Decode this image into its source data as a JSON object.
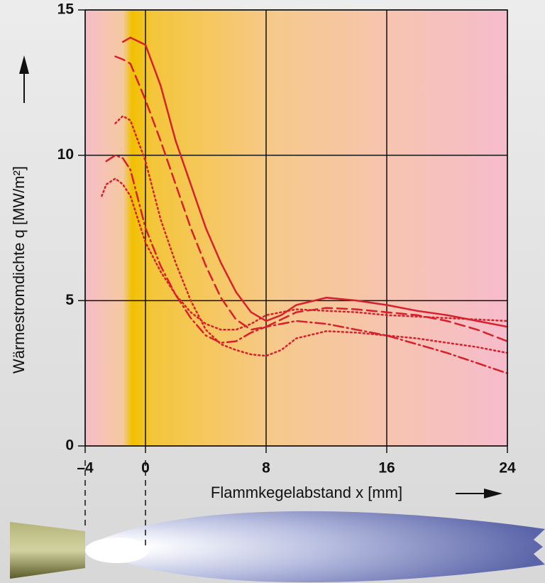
{
  "chart_data": {
    "type": "line",
    "ylabel": "Wärmestromdichte q [MW/m²]",
    "xlabel": "Flammkegelabstand x [mm]",
    "x": [
      -2.9,
      -2.6,
      -2,
      -1.5,
      -1,
      0,
      1,
      2,
      3,
      4,
      5,
      6,
      7,
      8,
      9,
      10,
      12,
      14,
      16,
      18,
      20,
      22,
      24
    ],
    "series": [
      {
        "color": "#d8202c",
        "dash": "solid",
        "values": [
          null,
          null,
          null,
          13.9,
          14.05,
          13.8,
          12.4,
          10.5,
          9.0,
          7.5,
          6.3,
          5.3,
          4.6,
          4.3,
          4.5,
          4.85,
          5.1,
          5.0,
          4.85,
          4.65,
          4.5,
          4.3,
          4.1
        ]
      },
      {
        "color": "#d8202c",
        "dash": "dashed",
        "values": [
          null,
          null,
          13.4,
          13.3,
          13.15,
          11.9,
          10.5,
          9.0,
          7.5,
          6.2,
          5.1,
          4.35,
          4.0,
          4.1,
          4.35,
          4.6,
          4.75,
          4.7,
          4.6,
          4.5,
          4.3,
          4.0,
          3.6
        ]
      },
      {
        "color": "#d8202c",
        "dash": "dotted",
        "values": [
          null,
          null,
          11.1,
          11.35,
          11.2,
          9.8,
          7.8,
          6.3,
          5.0,
          4.0,
          3.5,
          3.3,
          3.15,
          3.1,
          3.3,
          3.7,
          3.95,
          3.9,
          3.8,
          3.7,
          3.55,
          3.4,
          3.2
        ]
      },
      {
        "color": "#d8202c",
        "dash": "dashdot",
        "values": [
          null,
          9.8,
          10.0,
          9.9,
          9.5,
          7.5,
          6.2,
          5.2,
          4.4,
          3.8,
          3.55,
          3.6,
          3.9,
          4.1,
          4.2,
          4.3,
          4.2,
          4.0,
          3.8,
          3.5,
          3.2,
          2.85,
          2.5
        ]
      },
      {
        "color": "#d8202c",
        "dash": "dotted",
        "values": [
          8.6,
          9.0,
          9.2,
          9.0,
          8.6,
          7.0,
          6.0,
          5.2,
          4.6,
          4.2,
          4.0,
          4.0,
          4.2,
          4.5,
          4.6,
          4.7,
          4.65,
          4.6,
          4.5,
          4.45,
          4.4,
          4.35,
          4.3
        ]
      }
    ],
    "xlim": [
      -4,
      24
    ],
    "ylim": [
      0,
      15
    ],
    "xticks": [
      {
        "value": -4,
        "label": "–4"
      },
      0,
      8,
      16,
      24
    ],
    "yticks": [
      0,
      5,
      10,
      15
    ],
    "grid": true
  }
}
